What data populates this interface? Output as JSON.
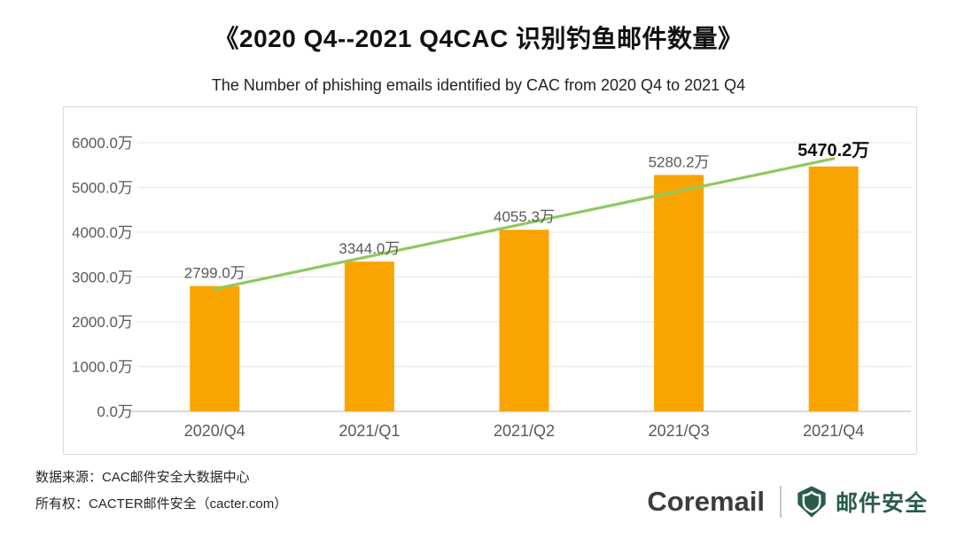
{
  "chart_data": {
    "type": "bar",
    "title": "《2020 Q4--2021 Q4CAC 识别钓鱼邮件数量》",
    "subtitle": "The Number of phishing emails identified by CAC from 2020 Q4 to 2021 Q4",
    "categories": [
      "2020/Q4",
      "2021/Q1",
      "2021/Q2",
      "2021/Q3",
      "2021/Q4"
    ],
    "values": [
      2799.0,
      3344.0,
      4055.3,
      5280.2,
      5470.2
    ],
    "data_labels": [
      "2799.0万",
      "3344.0万",
      "4055.3万",
      "5280.2万",
      "5470.2万"
    ],
    "y_ticks": [
      {
        "value": 0,
        "label": "0.0万"
      },
      {
        "value": 1000,
        "label": "1000.0万"
      },
      {
        "value": 2000,
        "label": "2000.0万"
      },
      {
        "value": 3000,
        "label": "3000.0万"
      },
      {
        "value": 4000,
        "label": "4000.0万"
      },
      {
        "value": 5000,
        "label": "5000.0万"
      },
      {
        "value": 6000,
        "label": "6000.0万"
      }
    ],
    "ylim": [
      0,
      6000
    ],
    "xlabel": "",
    "ylabel": "",
    "grid": true,
    "legend": false,
    "trendline": true,
    "bar_color": "#faa402",
    "trend_color": "#8fc860",
    "grid_color": "#e9e9e9",
    "zero_line_color": "#c3c3c3",
    "axis_label_color": "#595959",
    "highlight_label_color": "#111111"
  },
  "footer": {
    "source_line": "数据来源：CAC邮件安全大数据中心",
    "ownership_line": "所有权：CACTER邮件安全（cacter.com）"
  },
  "logo": {
    "brand": "Coremail",
    "product": "邮件安全",
    "shield_color": "#2a5c4b"
  }
}
